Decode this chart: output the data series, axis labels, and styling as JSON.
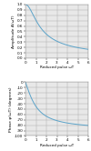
{
  "background_color": "#e8e8e8",
  "grid_color": "#b0b0b0",
  "line_color": "#5ba3c9",
  "line_width": 0.7,
  "x_max": 6,
  "x_ticks": [
    0,
    1,
    2,
    3,
    4,
    5,
    6
  ],
  "x_label": "Reduced pulse ωT",
  "top": {
    "ylabel": "Amplitude A(ωT)",
    "ylim": [
      0,
      1.0
    ],
    "yticks": [
      0.0,
      0.1,
      0.2,
      0.3,
      0.4,
      0.5,
      0.6,
      0.7,
      0.8,
      0.9,
      1.0
    ]
  },
  "bottom": {
    "ylabel": "Phase φ(ωT) (degrees)",
    "ylim": [
      -100,
      0
    ],
    "yticks": [
      0,
      -10,
      -20,
      -30,
      -40,
      -50,
      -60,
      -70,
      -80,
      -90,
      -100
    ]
  },
  "tick_fontsize": 3.0,
  "label_fontsize": 3.0,
  "ylabel_fontsize": 3.2
}
